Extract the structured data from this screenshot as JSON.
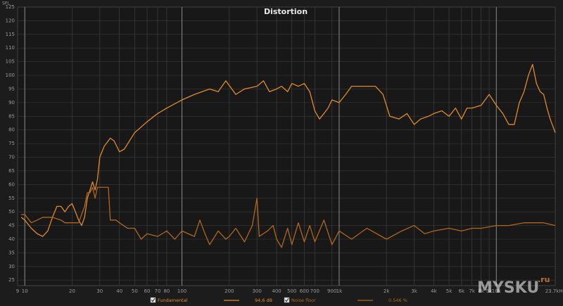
{
  "chart_data": {
    "type": "line",
    "title": "Distortion",
    "y_label": "SPL",
    "xscale": "log",
    "grid": true,
    "xlim": [
      9,
      23700
    ],
    "ylim": [
      23,
      125
    ],
    "xticks": [
      9,
      10,
      20,
      30,
      40,
      50,
      60,
      70,
      80,
      100,
      200,
      300,
      400,
      500,
      600,
      700,
      900,
      {
        "value": 1000,
        "label": "1k"
      },
      {
        "value": 2000,
        "label": "2k"
      },
      {
        "value": 3000,
        "label": "3k"
      },
      {
        "value": 4000,
        "label": "4k"
      },
      {
        "value": 5000,
        "label": "5k"
      },
      {
        "value": 6000,
        "label": "6k"
      },
      {
        "value": 7000,
        "label": "7k"
      },
      {
        "value": 8000,
        "label": "8k"
      },
      {
        "value": 9000,
        "label": "9k"
      },
      {
        "value": 10000,
        "label": "10k"
      },
      {
        "value": 23700,
        "label": "23.7kHz"
      }
    ],
    "yticks": [
      25,
      30,
      35,
      40,
      45,
      50,
      55,
      60,
      65,
      70,
      75,
      80,
      85,
      90,
      95,
      100,
      105,
      110,
      115,
      120,
      125
    ],
    "series": [
      {
        "name": "Fundamental",
        "color": "#e08a2a",
        "legend_value": "94,6 dB",
        "x": [
          9.5,
          10,
          11,
          12,
          13,
          14,
          15,
          16,
          17,
          18,
          19,
          20,
          21,
          22,
          23,
          24,
          25,
          26,
          27,
          28,
          29,
          30,
          32,
          35,
          37,
          40,
          43,
          50,
          60,
          70,
          80,
          100,
          120,
          150,
          170,
          190,
          220,
          250,
          300,
          330,
          360,
          400,
          430,
          470,
          500,
          550,
          600,
          650,
          700,
          750,
          800,
          850,
          900,
          1000,
          1100,
          1200,
          1500,
          1700,
          1900,
          2100,
          2400,
          2700,
          3000,
          3300,
          3700,
          4000,
          4500,
          5000,
          5500,
          6000,
          6500,
          7000,
          8000,
          9000,
          10000,
          11000,
          12000,
          13000,
          14000,
          15000,
          16000,
          17000,
          18000,
          19000,
          20000,
          21000,
          22000,
          23700
        ],
        "values": [
          48,
          47,
          44,
          42,
          41,
          43,
          48,
          52,
          52,
          50,
          52,
          53,
          50,
          47,
          45,
          48,
          55,
          58,
          61,
          58,
          62,
          70,
          74,
          77,
          76,
          72,
          73,
          79,
          83,
          86,
          88,
          91,
          93,
          95,
          94,
          98,
          93,
          95,
          96,
          98,
          94,
          95,
          96,
          94,
          97,
          96,
          97,
          94,
          87,
          84,
          86,
          88,
          91,
          90,
          93,
          96,
          96,
          96,
          93,
          85,
          84,
          86,
          82,
          84,
          85,
          86,
          87,
          85,
          88,
          84,
          88,
          88,
          89,
          93,
          89,
          86,
          82,
          82,
          90,
          94,
          100,
          104,
          97,
          94,
          93,
          88,
          84,
          79
        ]
      },
      {
        "name": "Noise floor",
        "color": "#b0661c",
        "legend_value": "0.546 %",
        "x": [
          9.5,
          10,
          11,
          12,
          13,
          14,
          15,
          17,
          18,
          20,
          22,
          24,
          25,
          26,
          27,
          28,
          29,
          30,
          34,
          35,
          38,
          40,
          45,
          50,
          55,
          60,
          70,
          80,
          90,
          100,
          120,
          130,
          140,
          150,
          170,
          190,
          200,
          220,
          250,
          280,
          300,
          310,
          350,
          380,
          400,
          430,
          470,
          500,
          550,
          600,
          650,
          700,
          800,
          900,
          1000,
          1200,
          1500,
          2000,
          2500,
          3000,
          3500,
          4000,
          5000,
          6000,
          7000,
          8000,
          10000,
          12000,
          15000,
          18000,
          20000,
          23700
        ],
        "values": [
          49,
          49,
          46,
          47,
          48,
          48,
          48,
          47,
          46,
          46,
          46,
          52,
          57,
          57,
          59,
          55,
          59,
          59,
          59,
          47,
          47,
          46,
          44,
          44,
          40,
          42,
          41,
          43,
          40,
          43,
          41,
          47,
          42,
          38,
          43,
          40,
          41,
          44,
          39,
          45,
          55,
          41,
          43,
          45,
          40,
          37,
          44,
          38,
          46,
          39,
          45,
          39,
          47,
          38,
          43,
          40,
          44,
          40,
          43,
          45,
          42,
          43,
          44,
          43,
          44,
          44,
          45,
          45,
          46,
          46,
          46,
          45
        ]
      }
    ],
    "watermark": [
      "MYSKU",
      ".ru"
    ]
  }
}
